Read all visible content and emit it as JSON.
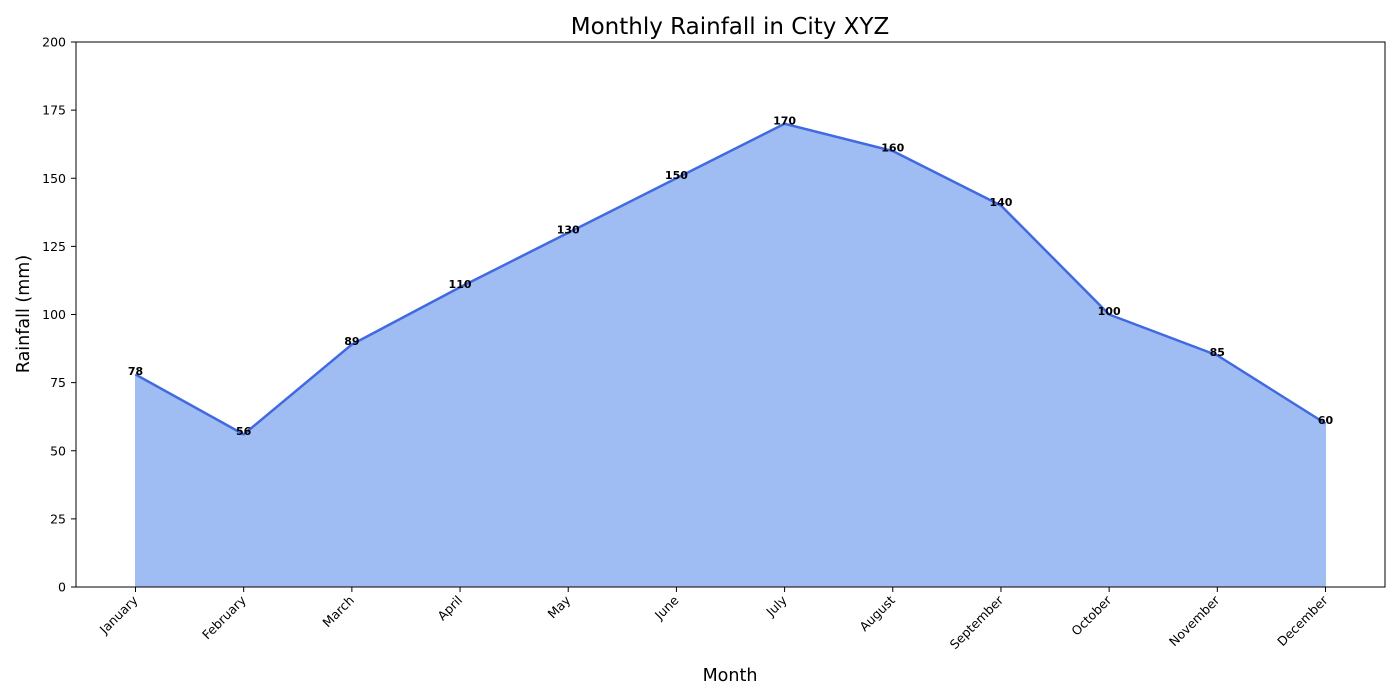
{
  "chart_data": {
    "type": "area",
    "title": "Monthly Rainfall in City XYZ",
    "xlabel": "Month",
    "ylabel": "Rainfall (mm)",
    "categories": [
      "January",
      "February",
      "March",
      "April",
      "May",
      "June",
      "July",
      "August",
      "September",
      "October",
      "November",
      "December"
    ],
    "series": [
      {
        "values": [
          78,
          56,
          89,
          110,
          130,
          150,
          170,
          160,
          140,
          100,
          85,
          60
        ],
        "line_color": "#4169e1",
        "fill_color": "#a0bdf3"
      }
    ],
    "ylim": [
      0,
      200
    ],
    "yticks": [
      0,
      25,
      50,
      75,
      100,
      125,
      150,
      175,
      200
    ],
    "grid": false,
    "legend": "none",
    "data_labels": true,
    "x_tick_rotation": "-45deg"
  }
}
